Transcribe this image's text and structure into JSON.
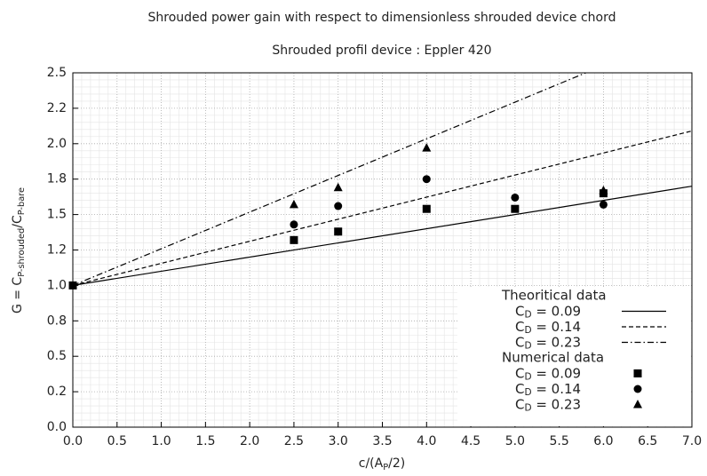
{
  "chart_data": {
    "type": "line",
    "title": "Shrouded power gain with respect to dimensionless shrouded device chord",
    "subtitle": "Shrouded profil device : Eppler 420",
    "x_label": "c/(AP/2)",
    "y_label": "G = CP-shrouded/CP-bare",
    "xlim": [
      0,
      7
    ],
    "ylim": [
      0,
      2.5
    ],
    "xticks": [
      {
        "value": 0,
        "label": "0.0"
      },
      0.5,
      {
        "value": 1,
        "label": "1.0"
      },
      1.5,
      {
        "value": 2,
        "label": "2.0"
      },
      2.5,
      {
        "value": 3,
        "label": "3.0"
      },
      3.5,
      {
        "value": 4,
        "label": "4.0"
      },
      4.5,
      {
        "value": 5,
        "label": "5.0"
      },
      5.5,
      {
        "value": 6,
        "label": "6.0"
      },
      6.5,
      {
        "value": 7,
        "label": "7.0"
      }
    ],
    "yticks": [
      {
        "value": 0,
        "label": "0.0"
      },
      {
        "value": 0.25,
        "label": "0.2"
      },
      0.5,
      {
        "value": 0.75,
        "label": "0.8"
      },
      {
        "value": 1,
        "label": "1.0"
      },
      {
        "value": 1.25,
        "label": "1.2"
      },
      1.5,
      {
        "value": 1.75,
        "label": "1.8"
      },
      {
        "value": 2,
        "label": "2.0"
      },
      {
        "value": 2.25,
        "label": "2.2"
      },
      2.5
    ],
    "grid": true,
    "minor_grid": true,
    "legend_position": "lower right",
    "legend_titles": [
      "Theoritical data",
      "Numerical data"
    ],
    "series": [
      {
        "name": "CD = 0.09",
        "group": 0,
        "style": "solid",
        "color": "#000000",
        "x": [
          0,
          7
        ],
        "values": [
          1.0,
          1.7
        ]
      },
      {
        "name": "CD = 0.14",
        "group": 0,
        "style": "dashed",
        "color": "#000000",
        "x": [
          0,
          7
        ],
        "values": [
          1.0,
          2.09
        ]
      },
      {
        "name": "CD = 0.23",
        "group": 0,
        "style": "dashdot",
        "color": "#000000",
        "x": [
          0,
          5.8
        ],
        "values": [
          1.0,
          2.5
        ]
      },
      {
        "name": "CD = 0.09",
        "group": 1,
        "marker": "square",
        "color": "#000000",
        "x": [
          0,
          2.5,
          3,
          4,
          5,
          6
        ],
        "values": [
          1.0,
          1.32,
          1.38,
          1.54,
          1.54,
          1.65
        ]
      },
      {
        "name": "CD = 0.14",
        "group": 1,
        "marker": "circle",
        "color": "#000000",
        "x": [
          2.5,
          3,
          4,
          5,
          6
        ],
        "values": [
          1.43,
          1.56,
          1.75,
          1.62,
          1.57
        ]
      },
      {
        "name": "CD = 0.23",
        "group": 1,
        "marker": "triangle",
        "color": "#000000",
        "x": [
          2.5,
          3,
          4,
          6
        ],
        "values": [
          1.57,
          1.69,
          1.97,
          1.67
        ]
      }
    ]
  }
}
